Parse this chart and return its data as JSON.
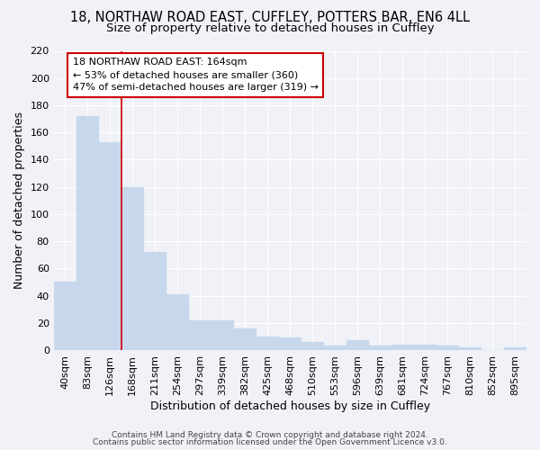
{
  "title1": "18, NORTHAW ROAD EAST, CUFFLEY, POTTERS BAR, EN6 4LL",
  "title2": "Size of property relative to detached houses in Cuffley",
  "xlabel": "Distribution of detached houses by size in Cuffley",
  "ylabel": "Number of detached properties",
  "bar_labels": [
    "40sqm",
    "83sqm",
    "126sqm",
    "168sqm",
    "211sqm",
    "254sqm",
    "297sqm",
    "339sqm",
    "382sqm",
    "425sqm",
    "468sqm",
    "510sqm",
    "553sqm",
    "596sqm",
    "639sqm",
    "681sqm",
    "724sqm",
    "767sqm",
    "810sqm",
    "852sqm",
    "895sqm"
  ],
  "bar_values": [
    50,
    172,
    153,
    120,
    72,
    41,
    22,
    22,
    16,
    10,
    9,
    6,
    3,
    7,
    3,
    4,
    4,
    3,
    2,
    0,
    2
  ],
  "bar_color": "#c8d8ec",
  "bar_edgecolor": "#c8d8ec",
  "bg_color": "#f0f2f8",
  "plot_bg_color": "#f0f2f8",
  "grid_color": "#ffffff",
  "vline_x": 3.0,
  "vline_color": "#cc0000",
  "annotation_line1": "18 NORTHAW ROAD EAST: 164sqm",
  "annotation_line2": "← 53% of detached houses are smaller (360)",
  "annotation_line3": "47% of semi-detached houses are larger (319) →",
  "annotation_box_color": "#cc0000",
  "ylim": [
    0,
    220
  ],
  "yticks": [
    0,
    20,
    40,
    60,
    80,
    100,
    120,
    140,
    160,
    180,
    200,
    220
  ],
  "footer1": "Contains HM Land Registry data © Crown copyright and database right 2024.",
  "footer2": "Contains public sector information licensed under the Open Government Licence v3.0.",
  "title1_fontsize": 10.5,
  "title2_fontsize": 9.5,
  "tick_fontsize": 8,
  "ylabel_fontsize": 9,
  "xlabel_fontsize": 9,
  "footer_fontsize": 6.5
}
